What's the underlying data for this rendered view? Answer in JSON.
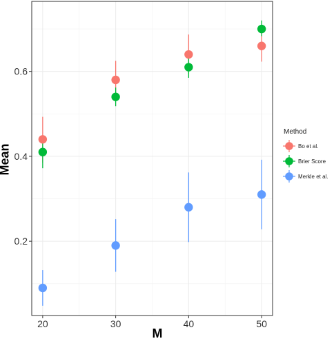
{
  "chart_data": {
    "type": "scatter",
    "xlabel": "M",
    "ylabel": "Mean",
    "x": [
      20,
      30,
      40,
      50
    ],
    "xticks": [
      "20",
      "30",
      "40",
      "50"
    ],
    "yticks": [
      "0.2",
      "0.4",
      "0.6"
    ],
    "xlim": [
      18.5,
      51.5
    ],
    "ylim": [
      0.025,
      0.765
    ],
    "xtick_values": [
      20,
      30,
      40,
      50
    ],
    "ytick_values": [
      0.2,
      0.4,
      0.6
    ],
    "legend_title": "Method",
    "legend_position": "right",
    "series": [
      {
        "name": "Bo et al.",
        "color": "#F8766D",
        "values": [
          0.44,
          0.58,
          0.64,
          0.66
        ],
        "lower": [
          0.385,
          0.535,
          0.595,
          0.623
        ],
        "upper": [
          0.493,
          0.625,
          0.687,
          0.697
        ]
      },
      {
        "name": "Brier Score",
        "color": "#00BA38",
        "values": [
          0.41,
          0.54,
          0.61,
          0.7
        ],
        "lower": [
          0.372,
          0.518,
          0.585,
          0.683
        ],
        "upper": [
          0.448,
          0.562,
          0.635,
          0.72
        ]
      },
      {
        "name": "Merkle et al.",
        "color": "#619CFF",
        "values": [
          0.09,
          0.19,
          0.28,
          0.31
        ],
        "lower": [
          0.048,
          0.128,
          0.198,
          0.228
        ],
        "upper": [
          0.132,
          0.252,
          0.362,
          0.392
        ]
      }
    ],
    "grid": true
  }
}
